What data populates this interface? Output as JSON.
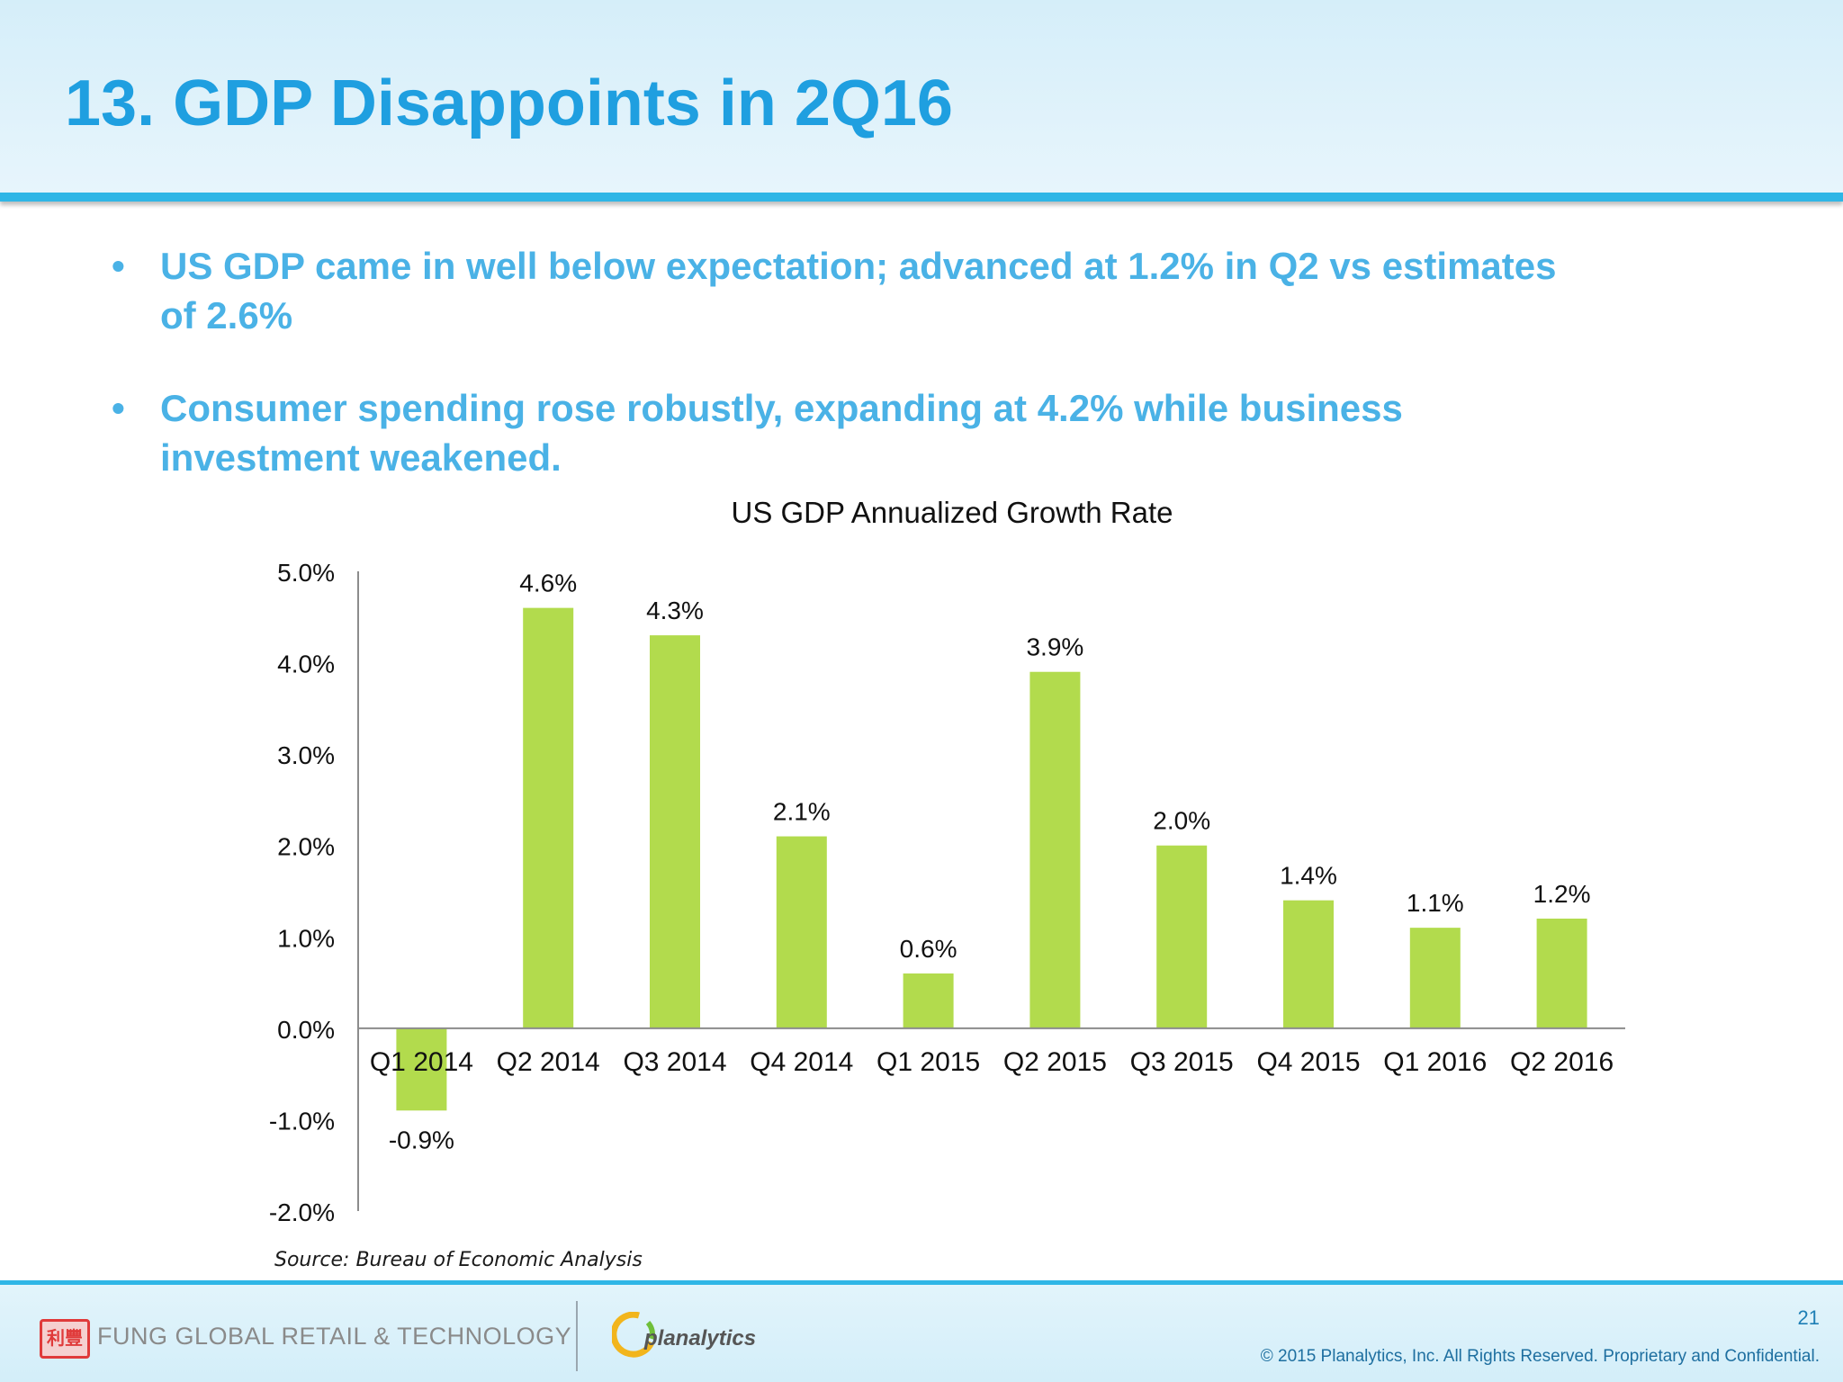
{
  "slide": {
    "title": "13. GDP Disappoints in 2Q16",
    "bullet_mark": "•",
    "bullets": [
      "US GDP came in well below expectation; advanced at 1.2% in Q2  vs estimates of 2.6%",
      "Consumer spending rose robustly, expanding at 4.2% while business investment weakened."
    ]
  },
  "chart_data": {
    "type": "bar",
    "title": "US GDP Annualized Growth Rate",
    "xlabel": "",
    "ylabel": "",
    "categories": [
      "Q1 2014",
      "Q2 2014",
      "Q3 2014",
      "Q4 2014",
      "Q1 2015",
      "Q2 2015",
      "Q3 2015",
      "Q4 2015",
      "Q1 2016",
      "Q2 2016"
    ],
    "values": [
      -0.9,
      4.6,
      4.3,
      2.1,
      0.6,
      3.9,
      2.0,
      1.4,
      1.1,
      1.2
    ],
    "data_labels": [
      "-0.9%",
      "4.6%",
      "4.3%",
      "2.1%",
      "0.6%",
      "3.9%",
      "2.0%",
      "1.4%",
      "1.1%",
      "1.2%"
    ],
    "y_ticks": [
      5.0,
      4.0,
      3.0,
      2.0,
      1.0,
      0.0,
      -1.0,
      -2.0
    ],
    "y_tick_labels": [
      "5.0%",
      "4.0%",
      "3.0%",
      "2.0%",
      "1.0%",
      "0.0%",
      "-1.0%",
      "-2.0%"
    ],
    "ylim": [
      -2.0,
      5.0
    ],
    "grid": false,
    "legend": "none",
    "bar_color": "#b2db4d",
    "source": "Source: Bureau of Economic Analysis"
  },
  "footer": {
    "logo_fung_text": "利豐",
    "brand_fung": "FUNG GLOBAL RETAIL & TECHNOLOGY",
    "brand_planalytics": "planalytics",
    "page_number": "21",
    "copyright": "© 2015 Planalytics, Inc. All Rights Reserved. Proprietary and Confidential."
  },
  "colors": {
    "title_blue": "#1f9fe0",
    "bullet_blue": "#4ab2e6",
    "rule_blue": "#2fb6e6",
    "bar_green": "#b2db4d"
  }
}
